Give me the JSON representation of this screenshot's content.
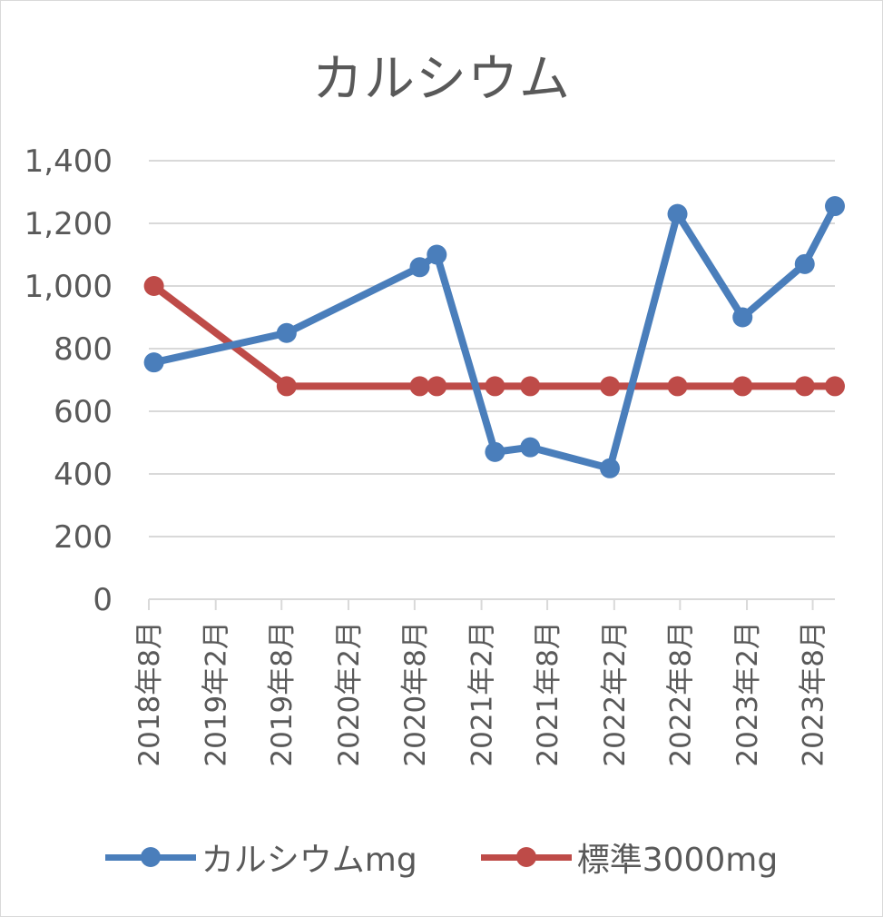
{
  "chart_data": {
    "type": "line",
    "title": "カルシウム",
    "xlabel": "",
    "ylabel": "",
    "ylim": [
      0,
      1400
    ],
    "y_ticks": [
      0,
      200,
      400,
      600,
      800,
      1000,
      1200,
      1400
    ],
    "y_tick_labels": [
      "0",
      "200",
      "400",
      "600",
      "800",
      "1,000",
      "1,200",
      "1,400"
    ],
    "x_axis": "date",
    "x_range": [
      "2018-08-01",
      "2023-10-01"
    ],
    "x_ticks": [
      "2018-08-01",
      "2019-02-01",
      "2019-08-01",
      "2020-02-01",
      "2020-08-01",
      "2021-02-01",
      "2021-08-01",
      "2022-02-01",
      "2022-08-01",
      "2023-02-01",
      "2023-08-01"
    ],
    "x_tick_labels": [
      "2018年8月",
      "2019年2月",
      "2019年8月",
      "2020年2月",
      "2020年8月",
      "2021年2月",
      "2021年8月",
      "2022年2月",
      "2022年8月",
      "2023年2月",
      "2023年8月"
    ],
    "grid": "horizontal",
    "legend_position": "bottom",
    "series": [
      {
        "name": "カルシウムmg",
        "color": "#4a7ebb",
        "x": [
          "2018-08-15",
          "2019-08-15",
          "2020-08-15",
          "2020-10-01",
          "2021-03-10",
          "2021-06-15",
          "2022-01-20",
          "2022-07-25",
          "2023-01-20",
          "2023-07-10",
          "2023-10-01"
        ],
        "y": [
          756,
          850,
          1060,
          1100,
          470,
          485,
          418,
          1230,
          900,
          1070,
          1255
        ]
      },
      {
        "name": "標準3000mg",
        "color": "#be4b48",
        "x": [
          "2018-08-15",
          "2019-08-15",
          "2020-08-15",
          "2020-10-01",
          "2021-03-10",
          "2021-06-15",
          "2022-01-20",
          "2022-07-25",
          "2023-01-20",
          "2023-07-10",
          "2023-10-01"
        ],
        "y": [
          1000,
          680,
          680,
          680,
          680,
          680,
          680,
          680,
          680,
          680,
          680
        ]
      }
    ]
  }
}
